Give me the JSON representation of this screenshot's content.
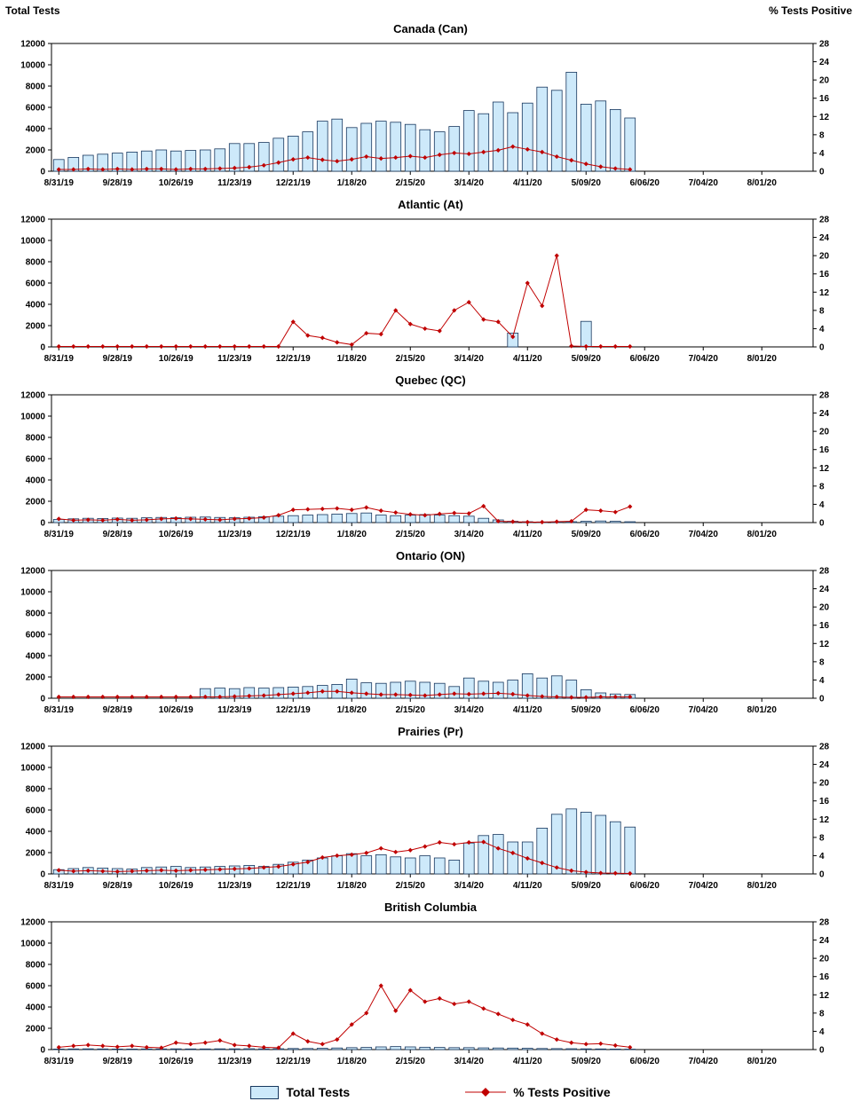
{
  "page": {
    "left_axis_title": "Total Tests",
    "right_axis_title": "% Tests Positive",
    "legend": {
      "bars_label": "Total Tests",
      "line_label": "% Tests Positive"
    }
  },
  "colors": {
    "bar_fill": "#CDE9FA",
    "bar_border": "#17375E",
    "line": "#C00000",
    "marker": "#C00000",
    "axis": "#000000"
  },
  "axes": {
    "x_tick_labels": [
      "8/31/19",
      "9/28/19",
      "10/26/19",
      "11/23/19",
      "12/21/19",
      "1/18/20",
      "2/15/20",
      "3/14/20",
      "4/11/20",
      "5/09/20",
      "6/06/20",
      "7/04/20",
      "8/01/20"
    ],
    "left_ticks": [
      0,
      2000,
      4000,
      6000,
      8000,
      10000,
      12000
    ],
    "right_ticks": [
      0,
      4,
      8,
      12,
      16,
      20,
      24,
      28
    ],
    "left_max": 12000,
    "right_max": 28,
    "total_slots": 52,
    "week_labels": [
      "8/31/19",
      "9/7/19",
      "9/14/19",
      "9/21/19",
      "9/28/19",
      "10/5/19",
      "10/12/19",
      "10/19/19",
      "10/26/19",
      "11/2/19",
      "11/9/19",
      "11/16/19",
      "11/23/19",
      "11/30/19",
      "12/7/19",
      "12/14/19",
      "12/21/19",
      "12/28/19",
      "1/4/20",
      "1/11/20",
      "1/18/20",
      "1/25/20",
      "2/1/20",
      "2/8/20",
      "2/15/20",
      "2/22/20",
      "2/29/20",
      "3/7/20",
      "3/14/20",
      "3/21/20",
      "3/28/20",
      "4/4/20",
      "4/11/20",
      "4/18/20",
      "4/25/20",
      "5/2/20",
      "5/9/20",
      "5/16/20",
      "5/23/20",
      "5/30/20"
    ],
    "grid": false
  },
  "chart_data": [
    {
      "type": "bar",
      "title": "Canada (Can)",
      "series": [
        {
          "name": "Total Tests",
          "type": "bar",
          "axis": "left",
          "values": [
            1100,
            1300,
            1500,
            1600,
            1700,
            1800,
            1900,
            2000,
            1900,
            1950,
            2000,
            2100,
            2600,
            2600,
            2700,
            3100,
            3300,
            3700,
            4700,
            4900,
            4100,
            4500,
            4700,
            4600,
            4400,
            3900,
            3700,
            4200,
            5700,
            5400,
            6500,
            5500,
            6400,
            7900,
            7600,
            9300,
            6300,
            6600,
            5800,
            5000
          ]
        },
        {
          "name": "% Tests Positive",
          "type": "line",
          "axis": "right",
          "values": [
            0.4,
            0.4,
            0.5,
            0.4,
            0.5,
            0.4,
            0.5,
            0.5,
            0.4,
            0.5,
            0.5,
            0.6,
            0.7,
            0.9,
            1.3,
            1.9,
            2.6,
            3.0,
            2.5,
            2.2,
            2.6,
            3.2,
            2.8,
            3.0,
            3.3,
            3.0,
            3.6,
            4.0,
            3.8,
            4.2,
            4.6,
            5.4,
            4.8,
            4.2,
            3.2,
            2.4,
            1.6,
            1.0,
            0.6,
            0.4
          ]
        }
      ]
    },
    {
      "type": "bar",
      "title": "Atlantic (At)",
      "series": [
        {
          "name": "Total Tests",
          "type": "bar",
          "axis": "left",
          "values": [
            0,
            0,
            0,
            0,
            0,
            0,
            0,
            0,
            0,
            0,
            0,
            0,
            0,
            0,
            0,
            0,
            0,
            0,
            0,
            0,
            0,
            0,
            0,
            0,
            0,
            0,
            0,
            0,
            0,
            0,
            0,
            1300,
            0,
            0,
            0,
            0,
            2400,
            0,
            0,
            0
          ]
        },
        {
          "name": "% Tests Positive",
          "type": "line",
          "axis": "right",
          "values": [
            0.1,
            0.1,
            0.1,
            0.1,
            0.1,
            0.1,
            0.1,
            0.1,
            0.1,
            0.1,
            0.1,
            0.1,
            0.1,
            0.1,
            0.1,
            0.1,
            5.5,
            2.5,
            2.0,
            1.0,
            0.5,
            3.0,
            2.8,
            8.0,
            5.0,
            4.0,
            3.5,
            8.0,
            9.8,
            6.0,
            5.5,
            2.2,
            14.0,
            9.0,
            20.0,
            0.2,
            0.1,
            0.1,
            0.1,
            0.1
          ]
        }
      ]
    },
    {
      "type": "bar",
      "title": "Quebec (QC)",
      "series": [
        {
          "name": "Total Tests",
          "type": "bar",
          "axis": "left",
          "values": [
            300,
            350,
            400,
            380,
            420,
            400,
            450,
            480,
            450,
            500,
            520,
            480,
            450,
            500,
            550,
            600,
            650,
            700,
            750,
            800,
            850,
            900,
            700,
            650,
            700,
            750,
            700,
            650,
            600,
            400,
            250,
            120,
            80,
            60,
            60,
            80,
            120,
            150,
            120,
            80
          ]
        },
        {
          "name": "% Tests Positive",
          "type": "line",
          "axis": "right",
          "values": [
            0.8,
            0.5,
            0.6,
            0.5,
            0.7,
            0.5,
            0.6,
            0.8,
            0.9,
            0.8,
            0.7,
            0.6,
            0.8,
            0.9,
            1.1,
            1.6,
            2.8,
            2.9,
            3.0,
            3.1,
            2.8,
            3.3,
            2.6,
            2.2,
            1.8,
            1.6,
            1.9,
            2.1,
            2.0,
            3.6,
            0.3,
            0.2,
            0.1,
            0.1,
            0.2,
            0.3,
            2.8,
            2.6,
            2.3,
            3.5
          ]
        }
      ]
    },
    {
      "type": "bar",
      "title": "Ontario (ON)",
      "series": [
        {
          "name": "Total Tests",
          "type": "bar",
          "axis": "left",
          "values": [
            0,
            0,
            0,
            0,
            0,
            0,
            0,
            0,
            0,
            0,
            900,
            950,
            900,
            1000,
            950,
            1000,
            1050,
            1100,
            1200,
            1300,
            1800,
            1450,
            1400,
            1500,
            1600,
            1500,
            1400,
            1100,
            1900,
            1600,
            1500,
            1700,
            2300,
            1900,
            2100,
            1700,
            800,
            500,
            400,
            350
          ]
        },
        {
          "name": "% Tests Positive",
          "type": "line",
          "axis": "right",
          "values": [
            0.3,
            0.3,
            0.3,
            0.3,
            0.3,
            0.3,
            0.3,
            0.3,
            0.3,
            0.3,
            0.3,
            0.3,
            0.4,
            0.5,
            0.6,
            0.8,
            1.0,
            1.2,
            1.5,
            1.5,
            1.2,
            1.0,
            0.8,
            0.8,
            0.7,
            0.6,
            0.8,
            1.0,
            0.9,
            1.0,
            1.1,
            0.9,
            0.6,
            0.4,
            0.3,
            0.2,
            0.2,
            0.3,
            0.3,
            0.3
          ]
        }
      ]
    },
    {
      "type": "bar",
      "title": "Prairies (Pr)",
      "series": [
        {
          "name": "Total Tests",
          "type": "bar",
          "axis": "left",
          "values": [
            400,
            500,
            600,
            550,
            500,
            450,
            600,
            650,
            700,
            600,
            650,
            700,
            750,
            800,
            700,
            900,
            1100,
            1300,
            1500,
            1700,
            1900,
            1700,
            1800,
            1600,
            1500,
            1700,
            1500,
            1300,
            2900,
            3600,
            3700,
            3000,
            3000,
            4300,
            5600,
            6100,
            5800,
            5500,
            4900,
            4400
          ]
        },
        {
          "name": "% Tests Positive",
          "type": "line",
          "axis": "right",
          "values": [
            0.8,
            0.6,
            0.7,
            0.6,
            0.5,
            0.6,
            0.7,
            0.8,
            0.7,
            0.8,
            0.9,
            1.0,
            1.1,
            1.2,
            1.4,
            1.6,
            2.1,
            2.6,
            3.6,
            4.0,
            4.2,
            4.6,
            5.6,
            4.8,
            5.2,
            6.0,
            6.9,
            6.5,
            6.9,
            7.0,
            5.6,
            4.6,
            3.4,
            2.4,
            1.4,
            0.7,
            0.4,
            0.2,
            0.15,
            0.1
          ]
        }
      ]
    },
    {
      "type": "bar",
      "title": "British Columbia",
      "series": [
        {
          "name": "Total Tests",
          "type": "bar",
          "axis": "left",
          "values": [
            50,
            60,
            70,
            60,
            50,
            50,
            60,
            60,
            70,
            60,
            60,
            70,
            70,
            80,
            70,
            80,
            100,
            100,
            120,
            150,
            180,
            200,
            250,
            280,
            250,
            220,
            200,
            180,
            180,
            160,
            150,
            140,
            120,
            100,
            90,
            80,
            70,
            60,
            50,
            40
          ]
        },
        {
          "name": "% Tests Positive",
          "type": "line",
          "axis": "right",
          "values": [
            0.5,
            0.8,
            1.0,
            0.8,
            0.6,
            0.8,
            0.5,
            0.4,
            1.5,
            1.2,
            1.5,
            2.0,
            1.0,
            0.8,
            0.5,
            0.4,
            3.5,
            1.8,
            1.2,
            2.2,
            5.5,
            8.0,
            14.0,
            8.5,
            13.0,
            10.5,
            11.2,
            10.0,
            10.5,
            9.0,
            7.8,
            6.5,
            5.5,
            3.5,
            2.2,
            1.5,
            1.2,
            1.3,
            0.9,
            0.5
          ]
        }
      ]
    }
  ]
}
